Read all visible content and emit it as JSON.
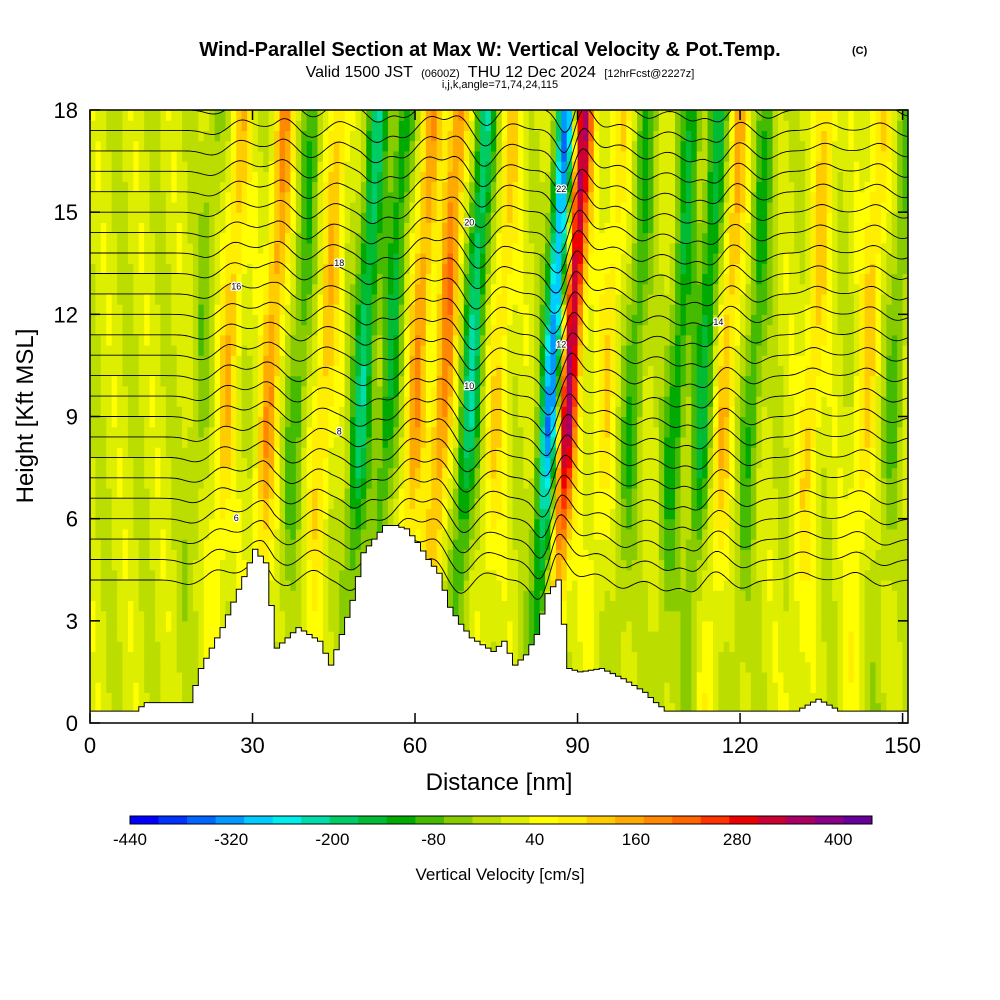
{
  "chart_data": {
    "type": "heatmap",
    "title": {
      "main": "Wind-Parallel Section at Max W: Vertical Velocity & Pot.Temp.",
      "copyright": "(C)"
    },
    "subtitle": {
      "valid": "Valid 1500 JST",
      "utc": "(0600Z)",
      "date": "THU 12 Dec 2024",
      "forecast": "[12hrFcst@2227z]",
      "grid_info": "i,j,k,angle=71,74,24,115"
    },
    "xlabel": "Distance [nm]",
    "ylabel": "Height [Kft MSL]",
    "xlim": [
      0,
      151
    ],
    "ylim": [
      0,
      18
    ],
    "x_ticks": [
      0,
      30,
      60,
      90,
      120,
      150
    ],
    "y_ticks": [
      0,
      3,
      6,
      9,
      12,
      15,
      18
    ],
    "grid": false,
    "colorbar": {
      "label": "Vertical Velocity [cm/s]",
      "placement": "bottom",
      "tick_labels": [
        "-440",
        "-320",
        "-200",
        "-80",
        "40",
        "160",
        "280",
        "400"
      ],
      "tick_values": [
        -440,
        -320,
        -200,
        -80,
        40,
        160,
        280,
        400
      ],
      "min": -440,
      "max": 440,
      "colors": [
        "#0000ff",
        "#0033ff",
        "#0066ff",
        "#0099ff",
        "#00ccff",
        "#00eeee",
        "#00ddaa",
        "#00cc66",
        "#00bb33",
        "#00aa00",
        "#44bb00",
        "#88cc00",
        "#bbdd00",
        "#ddee00",
        "#ffff00",
        "#ffee00",
        "#ffcc00",
        "#ffaa00",
        "#ff8800",
        "#ff6600",
        "#ff3300",
        "#ee0000",
        "#cc0033",
        "#aa0066",
        "#880088",
        "#660099"
      ]
    },
    "terrain": {
      "x": [
        0,
        8,
        10,
        18,
        20,
        24,
        28,
        30,
        32,
        34,
        36,
        38,
        40,
        42,
        44,
        46,
        48,
        50,
        52,
        54,
        56,
        58,
        60,
        62,
        64,
        66,
        68,
        70,
        72,
        74,
        76,
        78,
        80,
        82,
        84,
        86,
        88,
        90,
        94,
        98,
        102,
        104,
        106,
        110,
        130,
        134,
        138,
        140,
        150
      ],
      "height": [
        0.35,
        0.35,
        0.6,
        0.6,
        1.6,
        2.8,
        4.3,
        5.1,
        4.7,
        2.2,
        2.5,
        2.8,
        2.6,
        2.4,
        1.7,
        2.6,
        3.6,
        5.0,
        5.4,
        5.8,
        5.8,
        5.7,
        5.3,
        4.8,
        4.4,
        3.4,
        2.9,
        2.5,
        2.3,
        2.1,
        2.4,
        1.7,
        2.0,
        2.6,
        3.8,
        4.2,
        1.6,
        1.5,
        1.6,
        1.3,
        0.9,
        0.6,
        0.35,
        0.35,
        0.35,
        0.7,
        0.35,
        0.35,
        0.35
      ]
    },
    "wave_cores": [
      {
        "x": 20,
        "type": "down",
        "amplitude": 60
      },
      {
        "x": 25,
        "type": "up",
        "amplitude": 110
      },
      {
        "x": 33,
        "type": "up",
        "amplitude": 150
      },
      {
        "x": 38,
        "type": "down",
        "amplitude": 100
      },
      {
        "x": 43,
        "type": "up",
        "amplitude": 110
      },
      {
        "x": 50,
        "type": "down",
        "amplitude": 200
      },
      {
        "x": 55,
        "type": "down",
        "amplitude": 140
      },
      {
        "x": 60,
        "type": "up",
        "amplitude": 150
      },
      {
        "x": 65,
        "type": "up",
        "amplitude": 180
      },
      {
        "x": 70,
        "type": "down",
        "amplitude": 210
      },
      {
        "x": 75,
        "type": "up",
        "amplitude": 90
      },
      {
        "x": 85,
        "type": "down",
        "amplitude": 360
      },
      {
        "x": 88,
        "type": "up",
        "amplitude": 360
      },
      {
        "x": 95,
        "type": "up",
        "amplitude": 80
      },
      {
        "x": 100,
        "type": "down",
        "amplitude": 110
      },
      {
        "x": 108,
        "type": "down",
        "amplitude": 140
      },
      {
        "x": 113,
        "type": "down",
        "amplitude": 160
      },
      {
        "x": 117,
        "type": "up",
        "amplitude": 120
      },
      {
        "x": 122,
        "type": "down",
        "amplitude": 110
      },
      {
        "x": 133,
        "type": "up",
        "amplitude": 100
      },
      {
        "x": 143,
        "type": "up",
        "amplitude": 100
      },
      {
        "x": 148,
        "type": "down",
        "amplitude": 80
      }
    ],
    "theta_contours": [
      {
        "label": "6",
        "height": 5.8
      },
      {
        "label": "8",
        "height": 8.5
      },
      {
        "label": "10",
        "height": 10.3
      },
      {
        "label": "12",
        "height": 11.2
      },
      {
        "label": "14",
        "height": 11.8
      },
      {
        "label": "16",
        "height": 12.5
      },
      {
        "label": "18",
        "height": 13.3
      },
      {
        "label": "20",
        "height": 14.8
      },
      {
        "label": "22",
        "height": 16.3
      }
    ]
  }
}
